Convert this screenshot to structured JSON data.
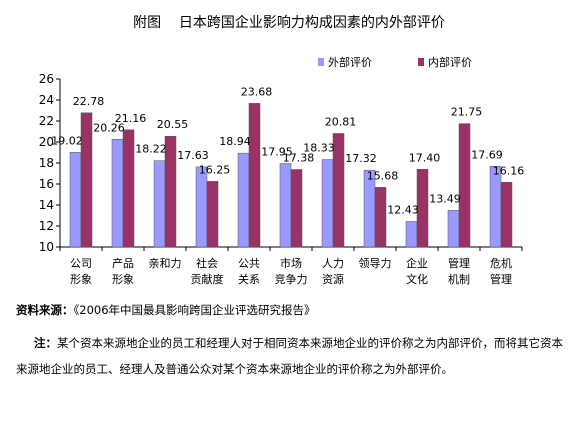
{
  "figure": {
    "title": "附图    日本跨国企业影响力构成因素的内外部评价",
    "source_label": "资料来源：",
    "source_text": "《2006年中国最具影响跨国企业评选研究报告》",
    "note_label": "注：",
    "note_text": "某个资本来源地企业的员工和经理人对于相同资本来源地企业的评价称之为内部评价，而将其它资本来源地企业的员工、经理人及普通公众对某个资本来源地企业的评价称之为外部评价。"
  },
  "chart_data": {
    "type": "bar",
    "title": "",
    "xlabel": "",
    "ylabel": "",
    "ylim": [
      10,
      26
    ],
    "yticks": [
      10,
      12,
      14,
      16,
      18,
      20,
      22,
      24,
      26
    ],
    "grid": false,
    "legend_position": "top-right",
    "categories": [
      [
        "公司",
        "形象"
      ],
      [
        "产品",
        "形象"
      ],
      [
        "亲和力"
      ],
      [
        "社会",
        "贡献度"
      ],
      [
        "公共",
        "关系"
      ],
      [
        "市场",
        "竞争力"
      ],
      [
        "人力",
        "资源"
      ],
      [
        "领导力"
      ],
      [
        "企业",
        "文化"
      ],
      [
        "管理",
        "机制"
      ],
      [
        "危机",
        "管理"
      ]
    ],
    "series": [
      {
        "name": "外部评价",
        "color": "#9999ff",
        "values": [
          19.02,
          20.26,
          18.22,
          17.63,
          18.94,
          17.95,
          18.33,
          17.32,
          12.43,
          13.49,
          17.69
        ],
        "labels": [
          "19.02",
          "20.26",
          "18.22",
          "17.63",
          "18.94",
          "17.95",
          "18.33",
          "17.32",
          "12.43",
          "13.49",
          "17.69"
        ]
      },
      {
        "name": "内部评价",
        "color": "#993366",
        "values": [
          22.78,
          21.16,
          20.55,
          16.25,
          23.68,
          17.38,
          20.81,
          15.68,
          17.4,
          21.75,
          16.16
        ],
        "labels": [
          "22.78",
          "21.16",
          "20.55",
          "16.25",
          "23.68",
          "17.38",
          "20.81",
          "15.68",
          "17.40",
          "21.75",
          "16.16"
        ]
      }
    ]
  }
}
